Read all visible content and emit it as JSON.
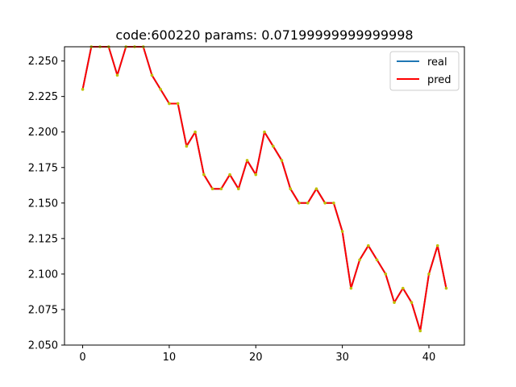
{
  "chart_data": {
    "type": "line",
    "title": "code:600220 params: 0.07199999999999998",
    "xlabel": "",
    "ylabel": "",
    "xlim": [
      -2.1,
      44.1
    ],
    "ylim": [
      2.05,
      2.26
    ],
    "x_ticks": [
      0,
      10,
      20,
      30,
      40
    ],
    "x_tick_labels": [
      "0",
      "10",
      "20",
      "30",
      "40"
    ],
    "y_ticks": [
      2.05,
      2.075,
      2.1,
      2.125,
      2.15,
      2.175,
      2.2,
      2.225,
      2.25
    ],
    "y_tick_labels": [
      "2.050",
      "2.075",
      "2.100",
      "2.125",
      "2.150",
      "2.175",
      "2.200",
      "2.225",
      "2.250"
    ],
    "grid": false,
    "legend_position": "upper right",
    "x": [
      0,
      1,
      2,
      3,
      4,
      5,
      6,
      7,
      8,
      9,
      10,
      11,
      12,
      13,
      14,
      15,
      16,
      17,
      18,
      19,
      20,
      21,
      22,
      23,
      24,
      25,
      26,
      27,
      28,
      29,
      30,
      31,
      32,
      33,
      34,
      35,
      36,
      37,
      38,
      39,
      40,
      41,
      42
    ],
    "series": [
      {
        "name": "real",
        "color": "#1f77b4",
        "values": [
          2.23,
          2.26,
          2.26,
          2.26,
          2.24,
          2.26,
          2.26,
          2.26,
          2.24,
          2.23,
          2.22,
          2.22,
          2.19,
          2.2,
          2.17,
          2.16,
          2.16,
          2.17,
          2.16,
          2.18,
          2.17,
          2.2,
          2.19,
          2.18,
          2.16,
          2.15,
          2.15,
          2.16,
          2.15,
          2.15,
          2.13,
          2.09,
          2.11,
          2.12,
          2.11,
          2.1,
          2.08,
          2.09,
          2.08,
          2.06,
          2.1,
          2.12,
          2.09
        ]
      },
      {
        "name": "pred",
        "color": "#ff0000",
        "values": [
          2.23,
          2.26,
          2.26,
          2.26,
          2.24,
          2.26,
          2.26,
          2.26,
          2.24,
          2.23,
          2.22,
          2.22,
          2.19,
          2.2,
          2.17,
          2.16,
          2.16,
          2.17,
          2.16,
          2.18,
          2.17,
          2.2,
          2.19,
          2.18,
          2.16,
          2.15,
          2.15,
          2.16,
          2.15,
          2.15,
          2.13,
          2.09,
          2.11,
          2.12,
          2.11,
          2.1,
          2.08,
          2.09,
          2.08,
          2.06,
          2.1,
          2.12,
          2.09
        ]
      }
    ],
    "marker_color": "#bfbf00"
  }
}
